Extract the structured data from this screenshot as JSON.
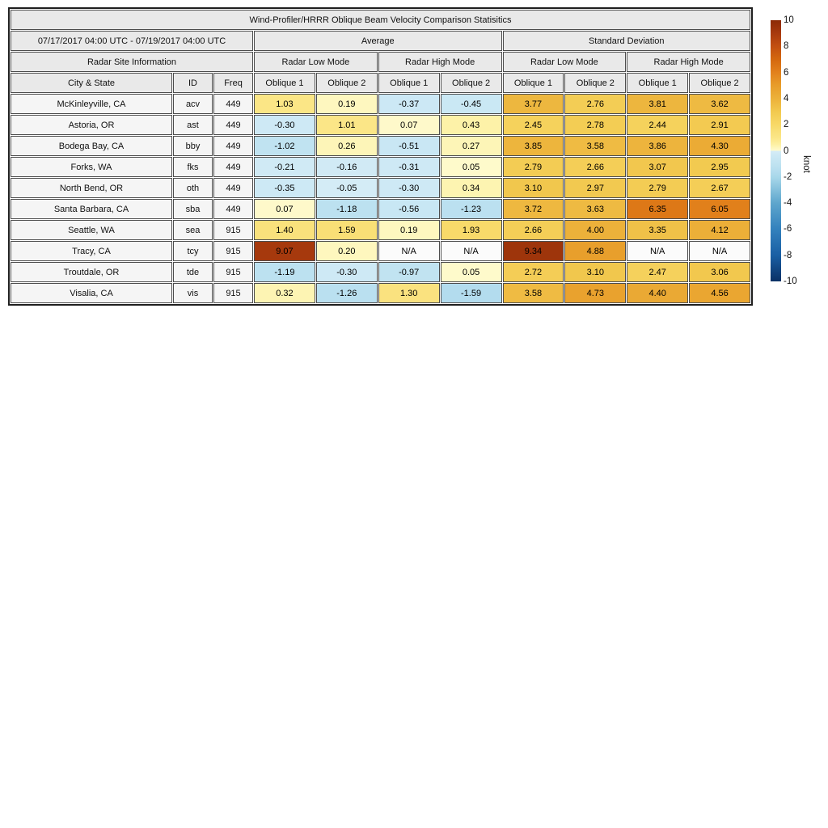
{
  "chart_data": {
    "type": "table",
    "title": "Wind-Profiler/HRRR Oblique Beam Velocity Comparison Statisitics",
    "header": {
      "date_range": "07/17/2017 04:00 UTC - 07/19/2017 04:00 UTC",
      "groups": [
        "Average",
        "Standard Deviation"
      ],
      "site_info": "Radar Site Information",
      "modes": [
        "Radar Low Mode",
        "Radar High Mode",
        "Radar Low Mode",
        "Radar High Mode"
      ],
      "columns": [
        "City & State",
        "ID",
        "Freq",
        "Oblique 1",
        "Oblique 2",
        "Oblique 1",
        "Oblique 2",
        "Oblique 1",
        "Oblique 2",
        "Oblique 1",
        "Oblique 2"
      ]
    },
    "rows": [
      {
        "city": "McKinleyville, CA",
        "id": "acv",
        "freq": "449",
        "values": [
          "1.03",
          "0.19",
          "-0.37",
          "-0.45",
          "3.77",
          "2.76",
          "3.81",
          "3.62"
        ]
      },
      {
        "city": "Astoria, OR",
        "id": "ast",
        "freq": "449",
        "values": [
          "-0.30",
          "1.01",
          "0.07",
          "0.43",
          "2.45",
          "2.78",
          "2.44",
          "2.91"
        ]
      },
      {
        "city": "Bodega Bay, CA",
        "id": "bby",
        "freq": "449",
        "values": [
          "-1.02",
          "0.26",
          "-0.51",
          "0.27",
          "3.85",
          "3.58",
          "3.86",
          "4.30"
        ]
      },
      {
        "city": "Forks, WA",
        "id": "fks",
        "freq": "449",
        "values": [
          "-0.21",
          "-0.16",
          "-0.31",
          "0.05",
          "2.79",
          "2.66",
          "3.07",
          "2.95"
        ]
      },
      {
        "city": "North Bend, OR",
        "id": "oth",
        "freq": "449",
        "values": [
          "-0.35",
          "-0.05",
          "-0.30",
          "0.34",
          "3.10",
          "2.97",
          "2.79",
          "2.67"
        ]
      },
      {
        "city": "Santa Barbara, CA",
        "id": "sba",
        "freq": "449",
        "values": [
          "0.07",
          "-1.18",
          "-0.56",
          "-1.23",
          "3.72",
          "3.63",
          "6.35",
          "6.05"
        ]
      },
      {
        "city": "Seattle, WA",
        "id": "sea",
        "freq": "915",
        "values": [
          "1.40",
          "1.59",
          "0.19",
          "1.93",
          "2.66",
          "4.00",
          "3.35",
          "4.12"
        ]
      },
      {
        "city": "Tracy, CA",
        "id": "tcy",
        "freq": "915",
        "values": [
          "9.07",
          "0.20",
          "N/A",
          "N/A",
          "9.34",
          "4.88",
          "N/A",
          "N/A"
        ]
      },
      {
        "city": "Troutdale, OR",
        "id": "tde",
        "freq": "915",
        "values": [
          "-1.19",
          "-0.30",
          "-0.97",
          "0.05",
          "2.72",
          "3.10",
          "2.47",
          "3.06"
        ]
      },
      {
        "city": "Visalia, CA",
        "id": "vis",
        "freq": "915",
        "values": [
          "0.32",
          "-1.26",
          "1.30",
          "-1.59",
          "3.58",
          "4.73",
          "4.40",
          "4.56"
        ]
      }
    ],
    "colorbar": {
      "label": "knot",
      "vmin": -10,
      "vmax": 10,
      "ticks": [
        10,
        8,
        6,
        4,
        2,
        0,
        -2,
        -4,
        -6,
        -8,
        -10
      ],
      "colormap": {
        "positive": [
          [
            0,
            "#fefbd0"
          ],
          [
            0.5,
            "#fdf0a2"
          ],
          [
            1,
            "#fbe687"
          ],
          [
            1.5,
            "#f9e079"
          ],
          [
            2,
            "#f8d967"
          ],
          [
            3,
            "#f2c94f"
          ],
          [
            4,
            "#ecb13a"
          ],
          [
            5,
            "#e89d2a"
          ],
          [
            6,
            "#e2811c"
          ],
          [
            7,
            "#d4680f"
          ],
          [
            8,
            "#c24f10"
          ],
          [
            9,
            "#a83a0e"
          ],
          [
            10,
            "#8c2a06"
          ]
        ],
        "negative": [
          [
            0,
            "#d5ecf6"
          ],
          [
            0.5,
            "#c9e7f4"
          ],
          [
            1,
            "#c0e3f1"
          ],
          [
            1.6,
            "#b3dcee"
          ],
          [
            2,
            "#a8d8ea"
          ],
          [
            4,
            "#5ea6cd"
          ],
          [
            6,
            "#3381bd"
          ],
          [
            8,
            "#1a5fa4"
          ],
          [
            10,
            "#0a3165"
          ]
        ],
        "na_color": "#fbfbfb"
      }
    }
  }
}
